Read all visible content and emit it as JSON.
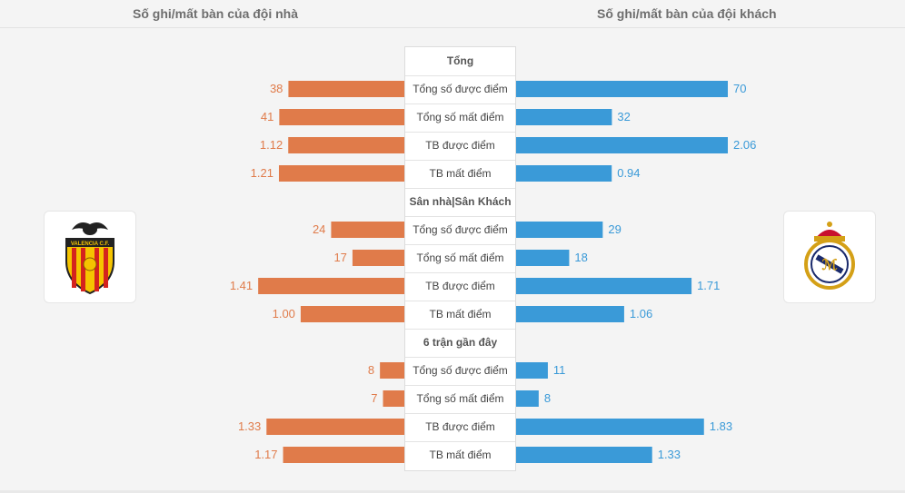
{
  "header": {
    "home_title": "Số ghi/mất bàn của đội nhà",
    "away_title": "Số ghi/mất bàn của đội khách"
  },
  "colors": {
    "home": "#e07b4a",
    "away": "#3a9ad8"
  },
  "logos": {
    "home_icon": "valencia-cf-crest",
    "home_text": "VALENCIA C.F.",
    "away_icon": "real-madrid-crest"
  },
  "chart_data": {
    "type": "bar",
    "orientation": "horizontal-diverging",
    "sections": [
      {
        "title": "Tổng",
        "rows": [
          {
            "label": "Tổng số được điểm",
            "home": 38,
            "away": 70,
            "home_text": "38",
            "away_text": "70",
            "max": 70
          },
          {
            "label": "Tổng số mất điểm",
            "home": 41,
            "away": 32,
            "home_text": "41",
            "away_text": "32",
            "max": 70
          },
          {
            "label": "TB được điểm",
            "home": 1.12,
            "away": 2.06,
            "home_text": "1.12",
            "away_text": "2.06",
            "max": 2.06
          },
          {
            "label": "TB mất điểm",
            "home": 1.21,
            "away": 0.94,
            "home_text": "1.21",
            "away_text": "0.94",
            "max": 2.06
          }
        ]
      },
      {
        "title": "Sân nhà|Sân Khách",
        "rows": [
          {
            "label": "Tổng số được điểm",
            "home": 24,
            "away": 29,
            "home_text": "24",
            "away_text": "29",
            "max": 70
          },
          {
            "label": "Tổng số mất điểm",
            "home": 17,
            "away": 18,
            "home_text": "17",
            "away_text": "18",
            "max": 70
          },
          {
            "label": "TB được điểm",
            "home": 1.41,
            "away": 1.71,
            "home_text": "1.41",
            "away_text": "1.71",
            "max": 2.06
          },
          {
            "label": "TB mất điểm",
            "home": 1.0,
            "away": 1.06,
            "home_text": "1.00",
            "away_text": "1.06",
            "max": 2.06
          }
        ]
      },
      {
        "title": "6 trận gần đây",
        "rows": [
          {
            "label": "Tổng số được điểm",
            "home": 8,
            "away": 11,
            "home_text": "8",
            "away_text": "11",
            "max": 70
          },
          {
            "label": "Tổng số mất điểm",
            "home": 7,
            "away": 8,
            "home_text": "7",
            "away_text": "8",
            "max": 70
          },
          {
            "label": "TB được điểm",
            "home": 1.33,
            "away": 1.83,
            "home_text": "1.33",
            "away_text": "1.83",
            "max": 2.06
          },
          {
            "label": "TB mất điểm",
            "home": 1.17,
            "away": 1.33,
            "home_text": "1.17",
            "away_text": "1.33",
            "max": 2.06
          }
        ]
      }
    ]
  }
}
